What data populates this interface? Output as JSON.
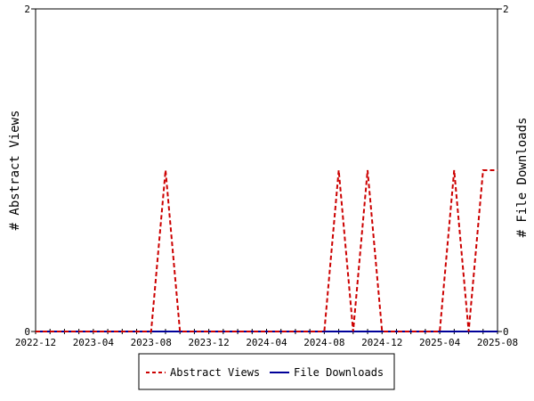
{
  "chart_data": {
    "type": "line",
    "title": "",
    "ylabel_left": "# Abstract Views",
    "ylabel_right": "# File Downloads",
    "x_tick_labels": [
      "2022-12",
      "2023-04",
      "2023-08",
      "2023-12",
      "2024-04",
      "2024-08",
      "2024-12",
      "2025-04",
      "2025-08"
    ],
    "y_left_ticks": [
      "0",
      "2"
    ],
    "y_right_ticks": [
      "0",
      "2"
    ],
    "ylim": [
      0,
      2
    ],
    "xlim": [
      "2022-12",
      "2025-08"
    ],
    "grid": false,
    "legend_position": "bottom",
    "x": [
      "2022-12",
      "2023-01",
      "2023-02",
      "2023-03",
      "2023-04",
      "2023-05",
      "2023-06",
      "2023-07",
      "2023-08",
      "2023-09",
      "2023-10",
      "2023-11",
      "2023-12",
      "2024-01",
      "2024-02",
      "2024-03",
      "2024-04",
      "2024-05",
      "2024-06",
      "2024-07",
      "2024-08",
      "2024-09",
      "2024-10",
      "2024-11",
      "2024-12",
      "2025-01",
      "2025-02",
      "2025-03",
      "2025-04",
      "2025-05",
      "2025-06",
      "2025-07",
      "2025-08"
    ],
    "series": [
      {
        "name": "Abstract Views",
        "color": "#cc0000",
        "style": "dashed",
        "values": [
          0,
          0,
          0,
          0,
          0,
          0,
          0,
          0,
          0,
          1,
          0,
          0,
          0,
          0,
          0,
          0,
          0,
          0,
          0,
          0,
          0,
          1,
          0,
          1,
          0,
          0,
          0,
          0,
          0,
          1,
          0,
          1,
          1
        ]
      },
      {
        "name": "File Downloads",
        "color": "#000099",
        "style": "solid",
        "values": [
          0,
          0,
          0,
          0,
          0,
          0,
          0,
          0,
          0,
          0,
          0,
          0,
          0,
          0,
          0,
          0,
          0,
          0,
          0,
          0,
          0,
          0,
          0,
          0,
          0,
          0,
          0,
          0,
          0,
          0,
          0,
          0,
          0
        ]
      }
    ]
  }
}
